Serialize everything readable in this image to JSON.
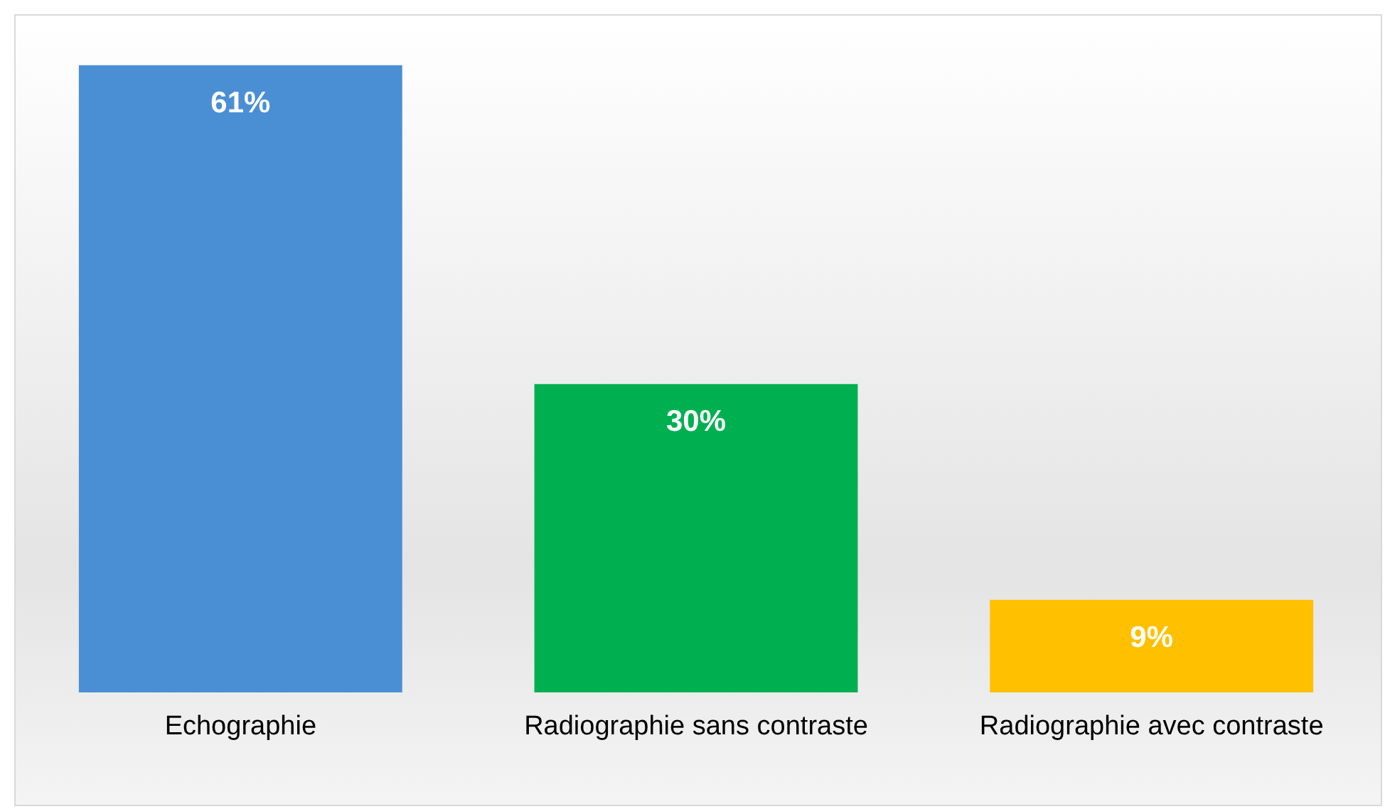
{
  "chart_data": {
    "type": "bar",
    "categories": [
      "Echographie",
      "Radiographie sans contraste",
      "Radiographie avec contraste"
    ],
    "values": [
      61,
      30,
      9
    ],
    "colors": [
      "#4a8fd4",
      "#00b050",
      "#ffc000"
    ],
    "value_labels": [
      "61%",
      "30%",
      "9%"
    ],
    "grid": false
  }
}
